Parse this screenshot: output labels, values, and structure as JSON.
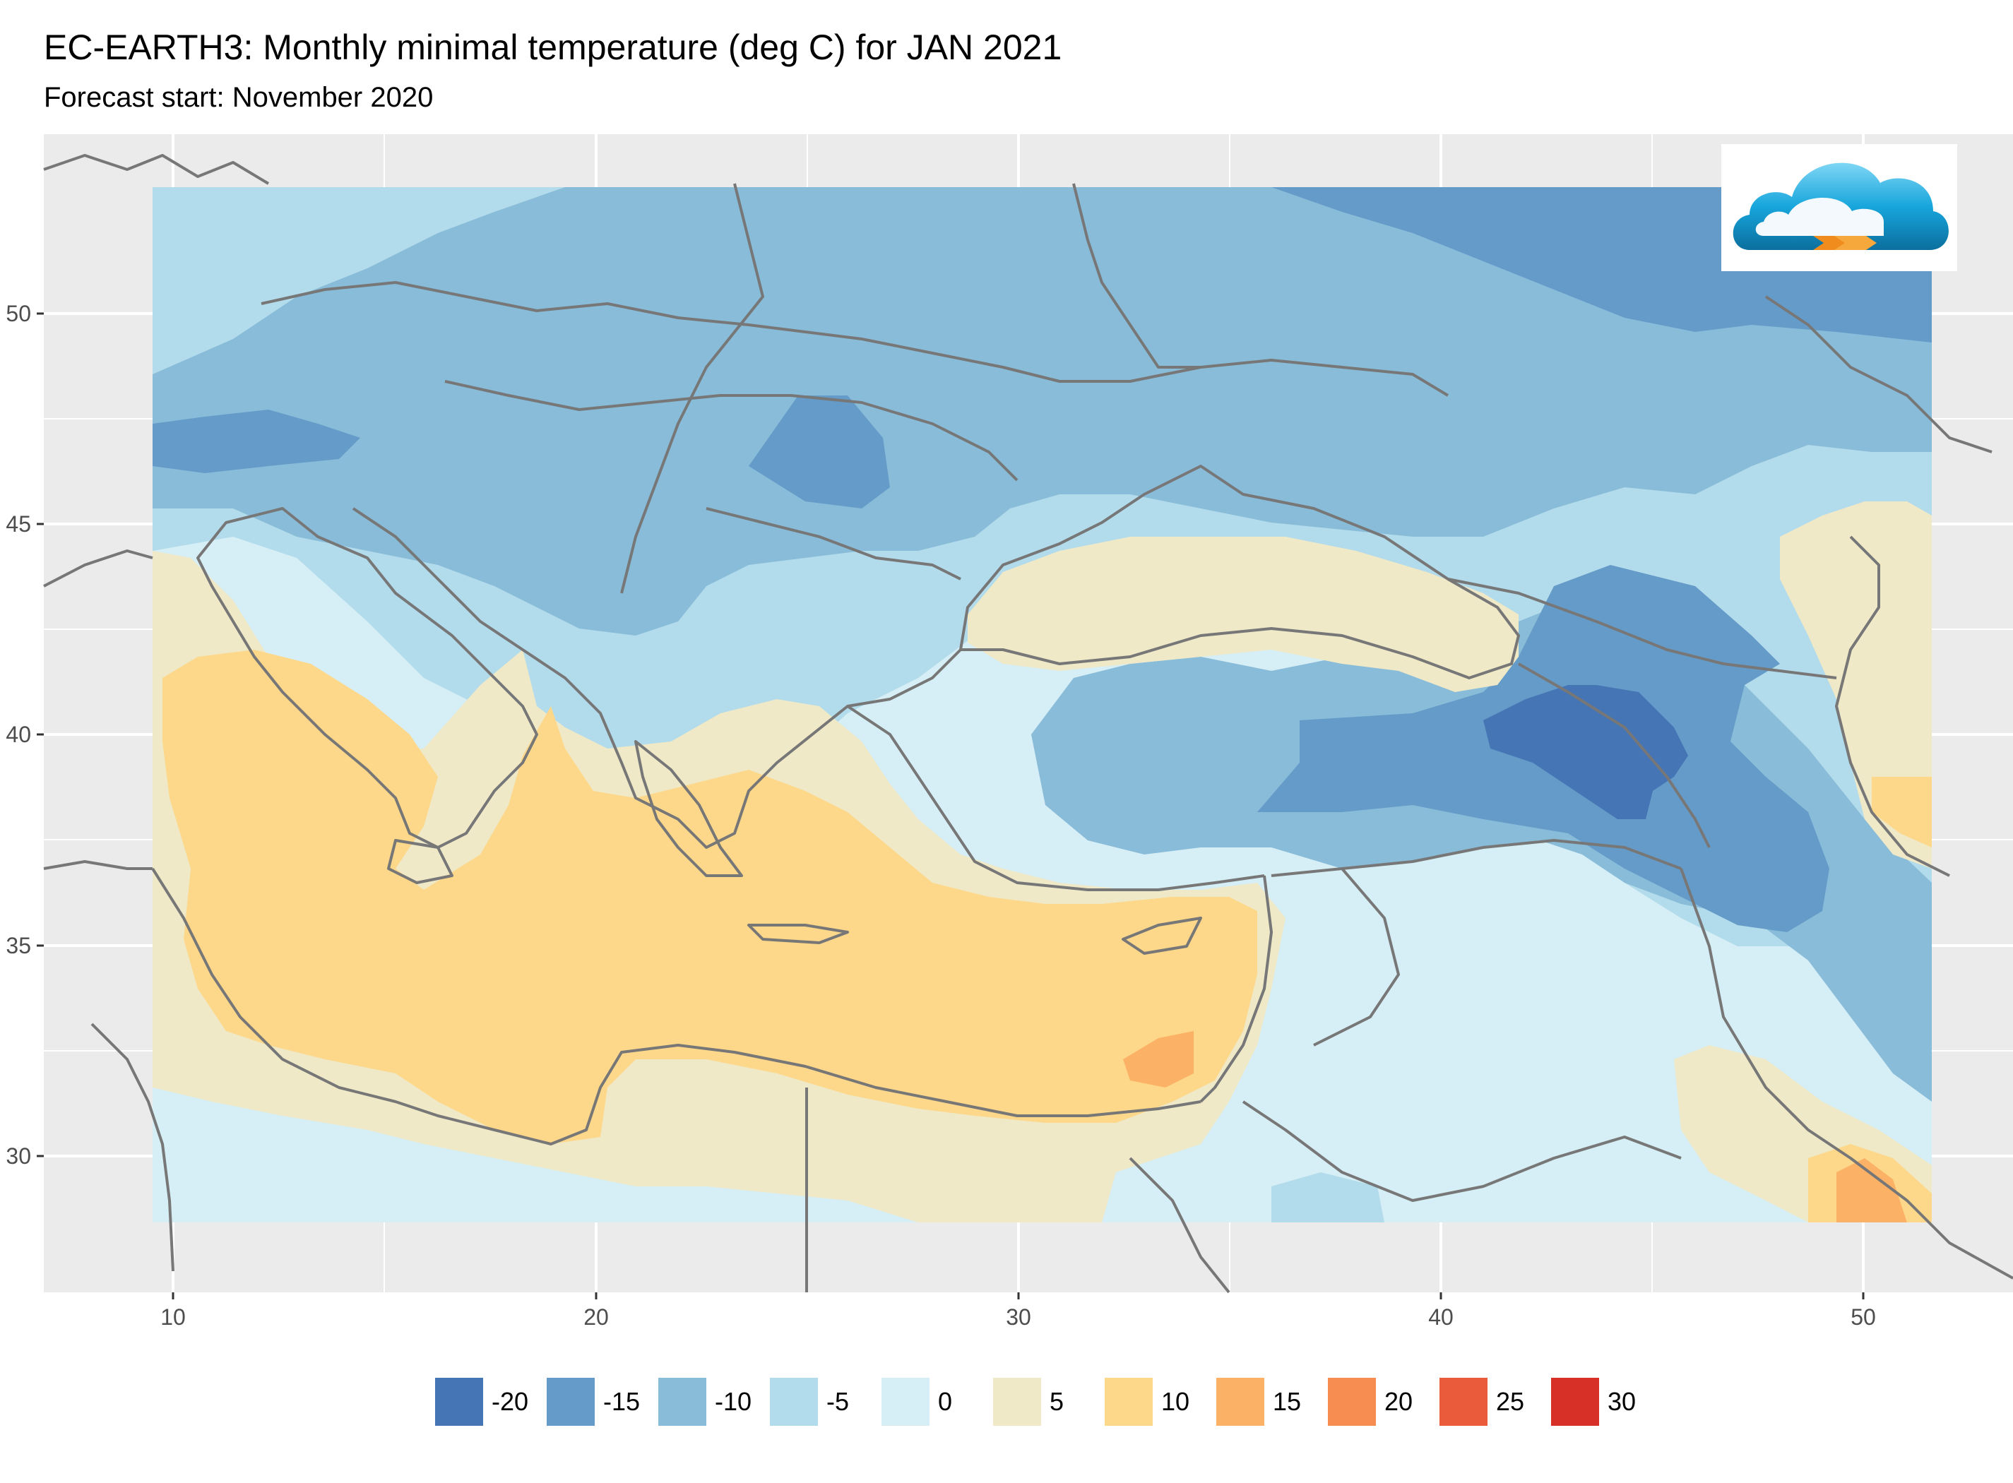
{
  "header": {
    "title": "EC-EARTH3: Monthly minimal temperature (deg C) for JAN 2021",
    "subtitle": "Forecast start: November 2020"
  },
  "axes": {
    "x_ticks": [
      {
        "value": 10,
        "label": "10"
      },
      {
        "value": 20,
        "label": "20"
      },
      {
        "value": 30,
        "label": "30"
      },
      {
        "value": 40,
        "label": "40"
      },
      {
        "value": 50,
        "label": "50"
      }
    ],
    "y_ticks": [
      {
        "value": 50,
        "label": "50"
      },
      {
        "value": 45,
        "label": "45"
      },
      {
        "value": 40,
        "label": "40"
      },
      {
        "value": 35,
        "label": "35"
      },
      {
        "value": 30,
        "label": "30"
      }
    ],
    "xlim": [
      7,
      53.5
    ],
    "ylim": [
      26.8,
      54.2
    ]
  },
  "legend": [
    {
      "label": "-20",
      "color": "#4575b4"
    },
    {
      "label": "-15",
      "color": "#659bc8"
    },
    {
      "label": "-10",
      "color": "#89bcd9"
    },
    {
      "label": "-5",
      "color": "#b2dbeb"
    },
    {
      "label": "0",
      "color": "#d6eef5"
    },
    {
      "label": "5",
      "color": "#efe9c8"
    },
    {
      "label": "10",
      "color": "#fdd88a"
    },
    {
      "label": "15",
      "color": "#fcb266"
    },
    {
      "label": "20",
      "color": "#f88d52"
    },
    {
      "label": "25",
      "color": "#ea5b3c"
    },
    {
      "label": "30",
      "color": "#d73027"
    }
  ],
  "colors": {
    "panel": "#ebebeb",
    "grid": "#ffffff",
    "border": "#777777"
  },
  "logo": "cloud-forecast-logo"
}
